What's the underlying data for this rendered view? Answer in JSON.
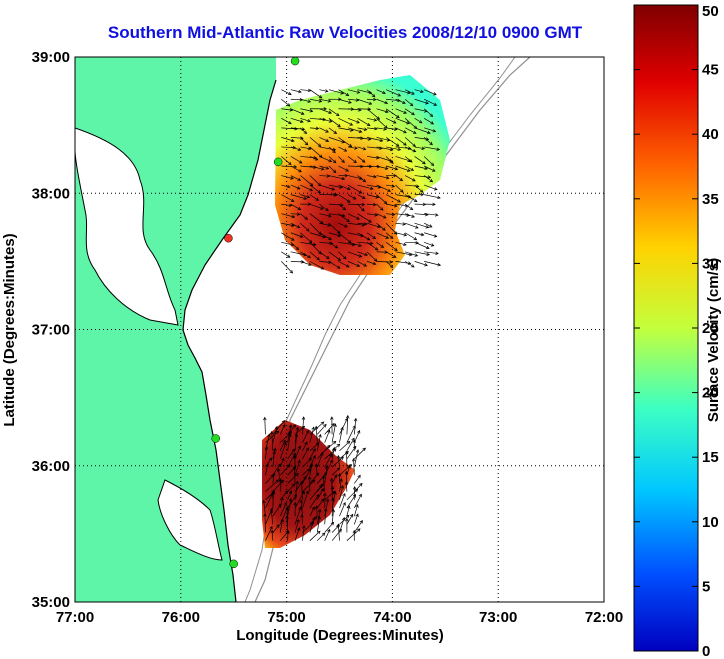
{
  "title": "Southern Mid-Atlantic Raw Velocities 2008/12/10 0900 GMT",
  "map": {
    "x_label": "Longitude (Degrees:Minutes)",
    "y_label": "Latitude (Degrees:Minutes)",
    "lon_range": [
      -77,
      -72
    ],
    "lat_range": [
      35,
      39
    ],
    "lon_ticks": [
      {
        "value": -77,
        "label": "77:00"
      },
      {
        "value": -76,
        "label": "76:00"
      },
      {
        "value": -75,
        "label": "75:00"
      },
      {
        "value": -74,
        "label": "74:00"
      },
      {
        "value": -73,
        "label": "73:00"
      },
      {
        "value": -72,
        "label": "72:00"
      }
    ],
    "lat_ticks": [
      {
        "value": 39,
        "label": "39:00"
      },
      {
        "value": 38,
        "label": "38:00"
      },
      {
        "value": 37,
        "label": "37:00"
      },
      {
        "value": 36,
        "label": "36:00"
      },
      {
        "value": 35,
        "label": "35:00"
      }
    ],
    "grid": "dotted",
    "land_color": "#5ef5a8",
    "coast_color": "#000000",
    "bathymetry_color": "#909090",
    "sites": [
      {
        "lon": -74.92,
        "lat": 38.97,
        "color": "#22dd22"
      },
      {
        "lon": -75.08,
        "lat": 38.23,
        "color": "#22dd22"
      },
      {
        "lon": -75.55,
        "lat": 37.67,
        "color": "#ee3322"
      },
      {
        "lon": -75.67,
        "lat": 36.2,
        "color": "#22dd22"
      },
      {
        "lon": -75.5,
        "lat": 35.28,
        "color": "#22dd22"
      }
    ]
  },
  "regions": [
    {
      "name": "northern field",
      "lon_range": [
        -75.1,
        -73.6
      ],
      "lat_range": [
        37.43,
        38.85
      ],
      "dominant_speed_cm_s": 45
    },
    {
      "name": "southern field",
      "lon_range": [
        -75.25,
        -74.3
      ],
      "lat_range": [
        35.35,
        36.3
      ],
      "dominant_speed_cm_s": 50
    }
  ],
  "colorbar": {
    "label": "Surface Velocity (cm/s)",
    "min": 0,
    "max": 50,
    "ticks": [
      "0",
      "5",
      "10",
      "15",
      "20",
      "25",
      "30",
      "35",
      "40",
      "45",
      "50"
    ],
    "colormap": "jet"
  }
}
